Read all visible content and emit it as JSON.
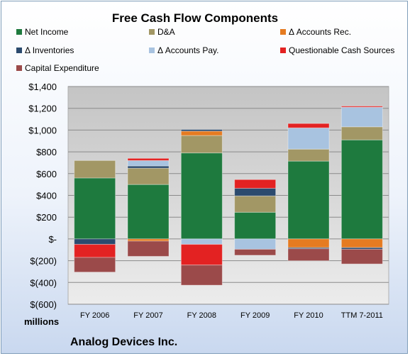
{
  "chart_data": {
    "type": "bar",
    "stacked": true,
    "title": "Free Cash Flow Components",
    "unit_label": "millions",
    "footer": "Analog Devices Inc.",
    "categories": [
      "FY 2006",
      "FY 2007",
      "FY 2008",
      "FY 2009",
      "FY 2010",
      "TTM 7-2011"
    ],
    "ylim": [
      -600,
      1400
    ],
    "yticks": [
      1400,
      1200,
      1000,
      800,
      600,
      400,
      200,
      0,
      -200,
      -400,
      -600
    ],
    "ytick_labels": [
      "$1,400",
      "$1,200",
      "$1,000",
      "$800",
      "$600",
      "$400",
      "$200",
      "$-",
      "$(200)",
      "$(400)",
      "$(600)"
    ],
    "grid": true,
    "legend_position": "top",
    "series": [
      {
        "name": "Net Income",
        "color": "#1e7a3e",
        "values": [
          560,
          500,
          790,
          245,
          715,
          910
        ]
      },
      {
        "name": "D&A",
        "color": "#a29765",
        "values": [
          160,
          150,
          160,
          150,
          110,
          120
        ]
      },
      {
        "name": "Δ Accounts Rec.",
        "color": "#e57b21",
        "values": [
          0,
          -20,
          40,
          0,
          -80,
          -80
        ]
      },
      {
        "name": "Δ Inventories",
        "color": "#2b4a6e",
        "values": [
          -50,
          20,
          15,
          70,
          -10,
          -15
        ]
      },
      {
        "name": "Δ Accounts Pay.",
        "color": "#a8c3e0",
        "values": [
          0,
          50,
          -50,
          -95,
          195,
          180
        ]
      },
      {
        "name": "Questionable Cash Sources",
        "color": "#e32222",
        "values": [
          -120,
          20,
          -190,
          80,
          40,
          10
        ]
      },
      {
        "name": "Capital Expenditure",
        "color": "#9b4a4a",
        "values": [
          -135,
          -140,
          -185,
          -55,
          -110,
          -135
        ]
      }
    ]
  }
}
